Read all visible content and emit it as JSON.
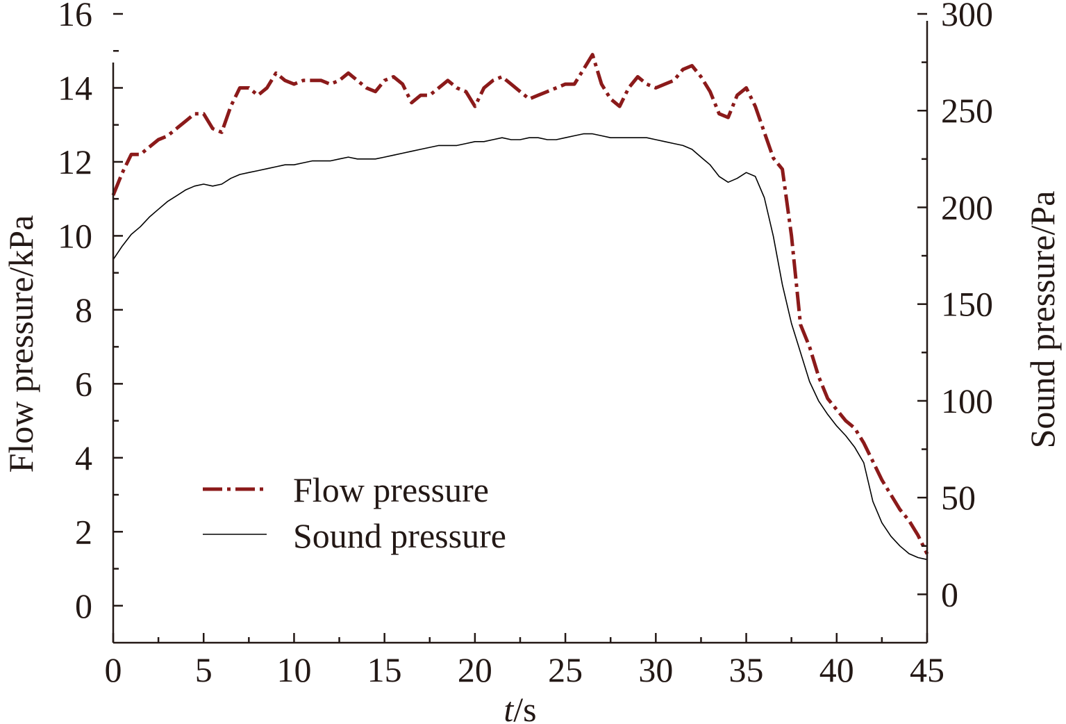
{
  "chart_data": {
    "type": "line",
    "xlabel_italic": "t",
    "xlabel_unit": "/s",
    "ylabel_left": "Flow pressure/kPa",
    "ylabel_right": "Sound pressure/Pa",
    "xlim": [
      0,
      45
    ],
    "ylim_left": [
      -1,
      16
    ],
    "ylim_right": [
      -25,
      300
    ],
    "x_ticks": [
      0,
      5,
      10,
      15,
      20,
      25,
      30,
      35,
      40,
      45
    ],
    "y_left_ticks": [
      0,
      2,
      4,
      6,
      8,
      10,
      12,
      14,
      16
    ],
    "y_right_ticks": [
      0,
      50,
      100,
      150,
      200,
      250,
      300
    ],
    "grid": false,
    "legend_position": "bottom-left",
    "series": [
      {
        "name": "Flow pressure",
        "axis": "left",
        "color": "#8b1a1a",
        "style": "dash-dot",
        "x": [
          0,
          0.5,
          1,
          1.5,
          2,
          2.5,
          3,
          3.5,
          4,
          4.5,
          5,
          5.5,
          6,
          6.5,
          7,
          7.5,
          8,
          8.5,
          9,
          9.5,
          10,
          10.5,
          11,
          11.5,
          12,
          12.5,
          13,
          13.5,
          14,
          14.5,
          15,
          15.5,
          16,
          16.5,
          17,
          17.5,
          18,
          18.5,
          19,
          19.5,
          20,
          20.5,
          21,
          21.5,
          22,
          22.5,
          23,
          23.5,
          24,
          24.5,
          25,
          25.5,
          26,
          26.5,
          27,
          27.5,
          28,
          28.5,
          29,
          29.5,
          30,
          30.5,
          31,
          31.5,
          32,
          32.5,
          33,
          33.5,
          34,
          34.5,
          35,
          35.5,
          36,
          36.5,
          37,
          37.5,
          38,
          38.5,
          39,
          39.5,
          40,
          40.5,
          41,
          41.5,
          42,
          42.5,
          43,
          43.5,
          44,
          44.5,
          45
        ],
        "values": [
          11.1,
          11.7,
          12.2,
          12.2,
          12.4,
          12.6,
          12.7,
          12.9,
          13.1,
          13.3,
          13.3,
          12.9,
          12.8,
          13.5,
          14.0,
          14.0,
          13.8,
          14.0,
          14.4,
          14.2,
          14.1,
          14.2,
          14.2,
          14.2,
          14.1,
          14.2,
          14.4,
          14.2,
          14.0,
          13.9,
          14.2,
          14.3,
          14.1,
          13.6,
          13.8,
          13.8,
          14.0,
          14.2,
          14.0,
          13.9,
          13.5,
          14.0,
          14.2,
          14.3,
          14.1,
          13.9,
          13.7,
          13.8,
          13.9,
          14.0,
          14.1,
          14.1,
          14.5,
          14.9,
          14.1,
          13.7,
          13.5,
          14.0,
          14.3,
          14.1,
          14.0,
          14.1,
          14.2,
          14.5,
          14.6,
          14.3,
          13.9,
          13.3,
          13.2,
          13.8,
          14.0,
          13.5,
          12.8,
          12.1,
          11.8,
          10.0,
          7.6,
          7.0,
          6.2,
          5.6,
          5.3,
          5.0,
          4.8,
          4.4,
          3.9,
          3.4,
          3.0,
          2.6,
          2.3,
          1.9,
          1.4
        ]
      },
      {
        "name": "Sound pressure",
        "axis": "right",
        "color": "#000000",
        "style": "solid",
        "x": [
          0,
          0.5,
          1,
          1.5,
          2,
          2.5,
          3,
          3.5,
          4,
          4.5,
          5,
          5.5,
          6,
          6.5,
          7,
          7.5,
          8,
          8.5,
          9,
          9.5,
          10,
          10.5,
          11,
          11.5,
          12,
          12.5,
          13,
          13.5,
          14,
          14.5,
          15,
          15.5,
          16,
          16.5,
          17,
          17.5,
          18,
          18.5,
          19,
          19.5,
          20,
          20.5,
          21,
          21.5,
          22,
          22.5,
          23,
          23.5,
          24,
          24.5,
          25,
          25.5,
          26,
          26.5,
          27,
          27.5,
          28,
          28.5,
          29,
          29.5,
          30,
          30.5,
          31,
          31.5,
          32,
          32.5,
          33,
          33.5,
          34,
          34.5,
          35,
          35.5,
          36,
          36.5,
          37,
          37.5,
          38,
          38.5,
          39,
          39.5,
          40,
          40.5,
          41,
          41.5,
          42,
          42.5,
          43,
          43.5,
          44,
          44.5,
          45
        ],
        "values": [
          173,
          180,
          186,
          190,
          195,
          199,
          203,
          206,
          209,
          211,
          212,
          211,
          212,
          215,
          217,
          218,
          219,
          220,
          221,
          222,
          222,
          223,
          224,
          224,
          224,
          225,
          226,
          225,
          225,
          225,
          226,
          227,
          228,
          229,
          230,
          231,
          232,
          232,
          232,
          233,
          234,
          234,
          235,
          236,
          235,
          235,
          236,
          236,
          235,
          235,
          236,
          237,
          238,
          238,
          237,
          236,
          236,
          236,
          236,
          236,
          235,
          234,
          233,
          232,
          230,
          226,
          222,
          216,
          213,
          215,
          218,
          216,
          205,
          185,
          160,
          140,
          125,
          110,
          100,
          93,
          87,
          82,
          76,
          68,
          48,
          37,
          30,
          25,
          21,
          19,
          18
        ]
      }
    ]
  }
}
